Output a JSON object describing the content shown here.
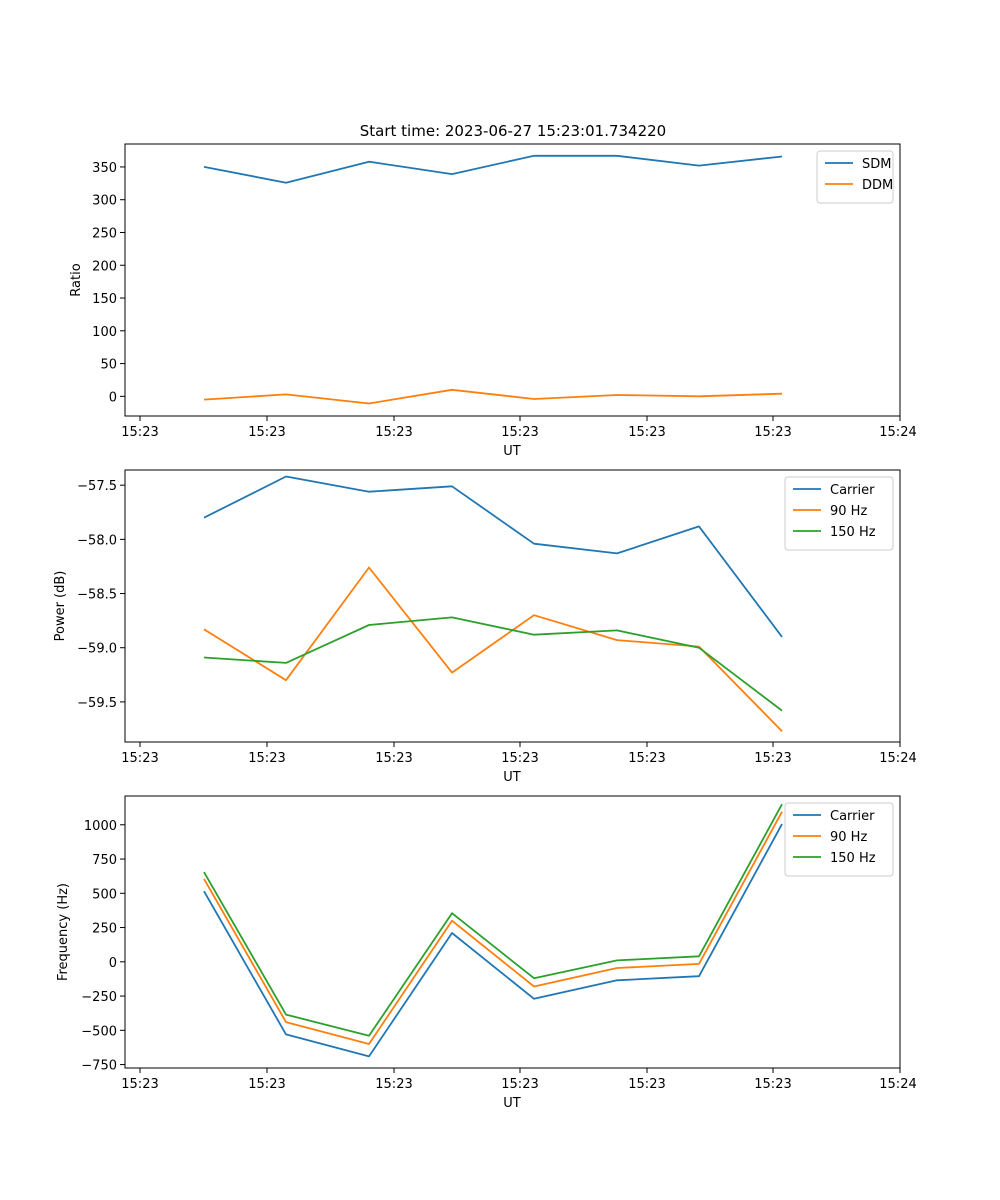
{
  "figure_title": "Start time: 2023-06-27 15:23:01.734220",
  "colors": {
    "blue": "#1f77b4",
    "orange": "#ff7f0e",
    "green": "#2ca02c"
  },
  "chart_data": [
    {
      "type": "line",
      "xlabel": "UT",
      "ylabel": "Ratio",
      "x_tick_labels": [
        "15:23",
        "15:23",
        "15:23",
        "15:23",
        "15:23",
        "15:23",
        "15:23"
      ],
      "x_last_tick_label": "15:24",
      "y_ticks": [
        0,
        50,
        100,
        150,
        200,
        250,
        300,
        350
      ],
      "ylim": [
        -30,
        385
      ],
      "legend_position": "upper right",
      "series": [
        {
          "name": "SDM",
          "color": "#1f77b4",
          "values": [
            350,
            326,
            358,
            339,
            367,
            367,
            352,
            366
          ]
        },
        {
          "name": "DDM",
          "color": "#ff7f0e",
          "values": [
            -5,
            3,
            -11,
            10,
            -4,
            2,
            0,
            4
          ]
        }
      ]
    },
    {
      "type": "line",
      "xlabel": "UT",
      "ylabel": "Power (dB)",
      "x_tick_labels": [
        "15:23",
        "15:23",
        "15:23",
        "15:23",
        "15:23",
        "15:23",
        "15:23"
      ],
      "x_last_tick_label": "15:24",
      "y_ticks": [
        -59.5,
        -59.0,
        -58.5,
        -58.0,
        -57.5
      ],
      "y_tick_labels": [
        "−59.5",
        "−59.0",
        "−58.5",
        "−58.0",
        "−57.5"
      ],
      "ylim": [
        -59.87,
        -57.36
      ],
      "legend_position": "upper right",
      "series": [
        {
          "name": "Carrier",
          "color": "#1f77b4",
          "values": [
            -57.8,
            -57.42,
            -57.56,
            -57.51,
            -58.04,
            -58.13,
            -57.88,
            -58.9
          ]
        },
        {
          "name": "90 Hz",
          "color": "#ff7f0e",
          "values": [
            -58.83,
            -59.3,
            -58.26,
            -59.23,
            -58.7,
            -58.93,
            -58.99,
            -59.77
          ]
        },
        {
          "name": "150 Hz",
          "color": "#2ca02c",
          "values": [
            -59.09,
            -59.14,
            -58.79,
            -58.72,
            -58.88,
            -58.84,
            -59.0,
            -59.58
          ]
        }
      ]
    },
    {
      "type": "line",
      "xlabel": "UT",
      "ylabel": "Frequency (Hz)",
      "x_tick_labels": [
        "15:23",
        "15:23",
        "15:23",
        "15:23",
        "15:23",
        "15:23",
        "15:23"
      ],
      "x_last_tick_label": "15:24",
      "y_ticks": [
        -750,
        -500,
        -250,
        0,
        250,
        500,
        750,
        1000
      ],
      "y_tick_labels": [
        "−750",
        "−500",
        "−250",
        "0",
        "250",
        "500",
        "750",
        "1000"
      ],
      "ylim": [
        -775,
        1210
      ],
      "legend_position": "upper right",
      "series": [
        {
          "name": "Carrier",
          "color": "#1f77b4",
          "values": [
            515,
            -530,
            -690,
            210,
            -270,
            -135,
            -105,
            1005
          ]
        },
        {
          "name": "90 Hz",
          "color": "#ff7f0e",
          "values": [
            605,
            -440,
            -600,
            300,
            -180,
            -45,
            -15,
            1095
          ]
        },
        {
          "name": "150 Hz",
          "color": "#2ca02c",
          "values": [
            655,
            -385,
            -540,
            355,
            -120,
            10,
            40,
            1150
          ]
        }
      ]
    }
  ]
}
